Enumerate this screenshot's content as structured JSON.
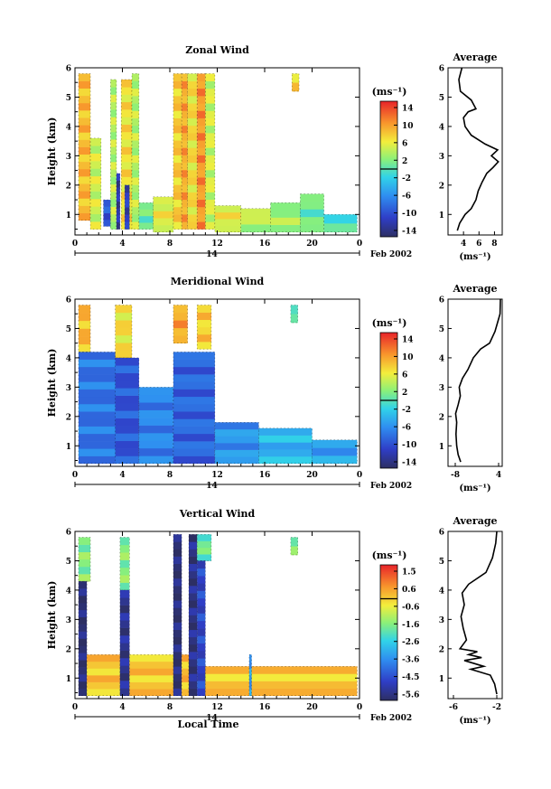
{
  "date_label": "Feb 2002",
  "chart_data": [
    {
      "type": "heatmap",
      "title": "Zonal Wind",
      "ylabel": "Height (km)",
      "xlabel": "",
      "x_ticks": [
        "0",
        "4",
        "8",
        "12",
        "16",
        "20",
        "0"
      ],
      "y_ticks": [
        "1",
        "2",
        "3",
        "4",
        "5",
        "6"
      ],
      "x_range": [
        0,
        24
      ],
      "ylim": [
        0.3,
        6
      ],
      "day_label": "14",
      "colorbar": {
        "unit": "(ms⁻¹)",
        "ticks": [
          "14",
          "10",
          "6",
          "2",
          "-2",
          "-6",
          "-10",
          "-14"
        ],
        "range": [
          -16,
          16
        ]
      },
      "columns": [
        {
          "t0": 0.3,
          "t1": 1.3,
          "h0": 0.8,
          "h1": 5.8,
          "v": 9
        },
        {
          "t0": 1.3,
          "t1": 2.2,
          "h0": 0.5,
          "h1": 3.6,
          "v": 5
        },
        {
          "t0": 2.4,
          "t1": 3.0,
          "h0": 0.6,
          "h1": 1.5,
          "v": -10
        },
        {
          "t0": 3.0,
          "t1": 3.5,
          "h0": 0.5,
          "h1": 5.6,
          "v": 4
        },
        {
          "t0": 3.5,
          "t1": 3.8,
          "h0": 0.5,
          "h1": 2.4,
          "v": -13
        },
        {
          "t0": 3.9,
          "t1": 4.8,
          "h0": 0.5,
          "h1": 5.6,
          "v": 7
        },
        {
          "t0": 4.2,
          "t1": 4.6,
          "h0": 0.5,
          "h1": 2.0,
          "v": -12
        },
        {
          "t0": 4.8,
          "t1": 5.4,
          "h0": 0.5,
          "h1": 5.8,
          "v": 4
        },
        {
          "t0": 5.4,
          "t1": 6.6,
          "h0": 0.5,
          "h1": 1.4,
          "v": 1
        },
        {
          "t0": 6.6,
          "t1": 8.3,
          "h0": 0.4,
          "h1": 1.6,
          "v": 6
        },
        {
          "t0": 8.3,
          "t1": 9.0,
          "h0": 0.5,
          "h1": 5.8,
          "v": 8
        },
        {
          "t0": 9.0,
          "t1": 9.5,
          "h0": 0.5,
          "h1": 5.8,
          "v": 10
        },
        {
          "t0": 9.5,
          "t1": 10.3,
          "h0": 0.5,
          "h1": 5.8,
          "v": 7
        },
        {
          "t0": 10.3,
          "t1": 11.0,
          "h0": 0.5,
          "h1": 5.8,
          "v": 11
        },
        {
          "t0": 11.0,
          "t1": 11.8,
          "h0": 0.5,
          "h1": 5.8,
          "v": 5
        },
        {
          "t0": 11.8,
          "t1": 14.0,
          "h0": 0.4,
          "h1": 1.3,
          "v": 6
        },
        {
          "t0": 14.0,
          "t1": 16.5,
          "h0": 0.4,
          "h1": 1.2,
          "v": 4
        },
        {
          "t0": 16.5,
          "t1": 19.0,
          "h0": 0.4,
          "h1": 1.4,
          "v": 3
        },
        {
          "t0": 19.0,
          "t1": 21.0,
          "h0": 0.4,
          "h1": 1.7,
          "v": 1
        },
        {
          "t0": 21.0,
          "t1": 23.8,
          "h0": 0.4,
          "h1": 1.0,
          "v": -1
        },
        {
          "t0": 18.3,
          "t1": 18.9,
          "h0": 5.2,
          "h1": 5.8,
          "v": 8
        }
      ],
      "profile": {
        "title": "Average",
        "xlabel": "(ms⁻¹)",
        "x_ticks": [
          "4",
          "6",
          "8"
        ],
        "xlim": [
          2,
          9
        ],
        "ylim": [
          0.3,
          6
        ],
        "points": [
          [
            3.2,
            0.45
          ],
          [
            3.5,
            0.7
          ],
          [
            4.2,
            1.0
          ],
          [
            5.0,
            1.2
          ],
          [
            5.6,
            1.5
          ],
          [
            5.9,
            1.8
          ],
          [
            6.4,
            2.1
          ],
          [
            7.0,
            2.4
          ],
          [
            7.8,
            2.6
          ],
          [
            8.5,
            2.8
          ],
          [
            7.6,
            3.0
          ],
          [
            8.4,
            3.2
          ],
          [
            6.8,
            3.4
          ],
          [
            5.0,
            3.7
          ],
          [
            4.2,
            4.0
          ],
          [
            4.0,
            4.3
          ],
          [
            4.6,
            4.5
          ],
          [
            5.6,
            4.6
          ],
          [
            5.0,
            4.9
          ],
          [
            3.6,
            5.2
          ],
          [
            3.4,
            5.6
          ],
          [
            3.8,
            6.0
          ]
        ]
      }
    },
    {
      "type": "heatmap",
      "title": "Meridional Wind",
      "ylabel": "Height (km)",
      "xlabel": "",
      "x_ticks": [
        "0",
        "4",
        "8",
        "12",
        "16",
        "20",
        "0"
      ],
      "y_ticks": [
        "1",
        "2",
        "3",
        "4",
        "5",
        "6"
      ],
      "x_range": [
        0,
        24
      ],
      "ylim": [
        0.3,
        6
      ],
      "day_label": "14",
      "colorbar": {
        "unit": "(ms⁻¹)",
        "ticks": [
          "14",
          "10",
          "6",
          "2",
          "-2",
          "-6",
          "-10",
          "-14"
        ],
        "range": [
          -16,
          16
        ]
      },
      "columns": [
        {
          "t0": 0.3,
          "t1": 1.3,
          "h0": 4.2,
          "h1": 5.8,
          "v": 9
        },
        {
          "t0": 0.3,
          "t1": 3.5,
          "h0": 0.4,
          "h1": 4.2,
          "v": -8
        },
        {
          "t0": 3.4,
          "t1": 4.8,
          "h0": 4.0,
          "h1": 5.8,
          "v": 7
        },
        {
          "t0": 3.4,
          "t1": 5.4,
          "h0": 0.4,
          "h1": 4.0,
          "v": -10
        },
        {
          "t0": 5.4,
          "t1": 8.3,
          "h0": 0.4,
          "h1": 3.0,
          "v": -7
        },
        {
          "t0": 8.3,
          "t1": 9.5,
          "h0": 4.5,
          "h1": 5.8,
          "v": 10
        },
        {
          "t0": 8.3,
          "t1": 11.8,
          "h0": 0.4,
          "h1": 4.2,
          "v": -9
        },
        {
          "t0": 10.3,
          "t1": 11.5,
          "h0": 4.3,
          "h1": 5.8,
          "v": 8
        },
        {
          "t0": 11.8,
          "t1": 15.5,
          "h0": 0.4,
          "h1": 1.8,
          "v": -6
        },
        {
          "t0": 15.5,
          "t1": 20.0,
          "h0": 0.4,
          "h1": 1.6,
          "v": -4
        },
        {
          "t0": 20.0,
          "t1": 23.8,
          "h0": 0.4,
          "h1": 1.2,
          "v": -5
        },
        {
          "t0": 18.2,
          "t1": 18.8,
          "h0": 5.2,
          "h1": 5.8,
          "v": 1
        }
      ],
      "profile": {
        "title": "Average",
        "xlabel": "(ms⁻¹)",
        "x_ticks": [
          "-8",
          "4"
        ],
        "xlim": [
          -10,
          5
        ],
        "ylim": [
          0.3,
          6
        ],
        "points": [
          [
            -6.5,
            0.45
          ],
          [
            -7.2,
            0.7
          ],
          [
            -7.6,
            1.0
          ],
          [
            -7.8,
            1.4
          ],
          [
            -7.6,
            1.8
          ],
          [
            -7.9,
            2.1
          ],
          [
            -7.2,
            2.4
          ],
          [
            -6.6,
            2.7
          ],
          [
            -6.9,
            3.0
          ],
          [
            -6.0,
            3.3
          ],
          [
            -4.5,
            3.6
          ],
          [
            -3.0,
            4.0
          ],
          [
            -1.0,
            4.3
          ],
          [
            1.5,
            4.5
          ],
          [
            3.0,
            4.9
          ],
          [
            3.7,
            5.2
          ],
          [
            4.4,
            5.5
          ],
          [
            4.5,
            6.0
          ]
        ]
      }
    },
    {
      "type": "heatmap",
      "title": "Vertical Wind",
      "ylabel": "Height (km)",
      "xlabel": "Local Time",
      "x_ticks": [
        "0",
        "4",
        "8",
        "12",
        "16",
        "20",
        "0"
      ],
      "y_ticks": [
        "1",
        "2",
        "3",
        "4",
        "5",
        "6"
      ],
      "x_range": [
        0,
        24
      ],
      "ylim": [
        0.3,
        6
      ],
      "day_label": "14",
      "colorbar": {
        "unit": "(ms⁻¹)",
        "ticks": [
          "1.5",
          "0.6",
          "-0.6",
          "-1.6",
          "-2.6",
          "-3.6",
          "-4.5",
          "-5.6"
        ],
        "range": [
          -6,
          2
        ]
      },
      "columns": [
        {
          "t0": 0.3,
          "t1": 1.3,
          "h0": 4.3,
          "h1": 5.8,
          "v": -1.5
        },
        {
          "t0": 0.3,
          "t1": 1.0,
          "h0": 0.4,
          "h1": 4.3,
          "v": -5.8
        },
        {
          "t0": 1.0,
          "t1": 3.8,
          "h0": 0.4,
          "h1": 1.8,
          "v": 0.1
        },
        {
          "t0": 3.8,
          "t1": 4.6,
          "h0": 4.0,
          "h1": 5.8,
          "v": -1.5
        },
        {
          "t0": 3.8,
          "t1": 4.6,
          "h0": 0.4,
          "h1": 4.0,
          "v": -5.5
        },
        {
          "t0": 4.6,
          "t1": 8.3,
          "h0": 0.4,
          "h1": 1.8,
          "v": 0.1
        },
        {
          "t0": 8.3,
          "t1": 9.0,
          "h0": 0.4,
          "h1": 5.9,
          "v": -5.8
        },
        {
          "t0": 9.0,
          "t1": 9.6,
          "h0": 0.4,
          "h1": 1.8,
          "v": 0.2
        },
        {
          "t0": 9.6,
          "t1": 10.3,
          "h0": 0.4,
          "h1": 5.9,
          "v": -5.6
        },
        {
          "t0": 10.3,
          "t1": 11.5,
          "h0": 5.0,
          "h1": 5.9,
          "v": -1.8
        },
        {
          "t0": 10.3,
          "t1": 11.0,
          "h0": 0.4,
          "h1": 5.0,
          "v": -4.8
        },
        {
          "t0": 11.0,
          "t1": 23.8,
          "h0": 0.4,
          "h1": 1.4,
          "v": 0.1
        },
        {
          "t0": 14.7,
          "t1": 14.9,
          "h0": 0.4,
          "h1": 1.8,
          "v": -3.4
        },
        {
          "t0": 18.2,
          "t1": 18.8,
          "h0": 5.2,
          "h1": 5.8,
          "v": -1.4
        }
      ],
      "profile": {
        "title": "Average",
        "xlabel": "(ms⁻¹)",
        "x_ticks": [
          "-6",
          "-2"
        ],
        "xlim": [
          -6.5,
          -1.5
        ],
        "ylim": [
          0.3,
          6
        ],
        "points": [
          [
            -2.0,
            0.45
          ],
          [
            -2.2,
            0.8
          ],
          [
            -2.6,
            1.1
          ],
          [
            -4.4,
            1.3
          ],
          [
            -3.2,
            1.4
          ],
          [
            -5.0,
            1.6
          ],
          [
            -3.4,
            1.7
          ],
          [
            -4.6,
            1.8
          ],
          [
            -3.8,
            1.9
          ],
          [
            -5.4,
            2.0
          ],
          [
            -4.8,
            2.3
          ],
          [
            -5.1,
            2.7
          ],
          [
            -5.3,
            3.1
          ],
          [
            -5.0,
            3.5
          ],
          [
            -5.2,
            3.9
          ],
          [
            -4.6,
            4.2
          ],
          [
            -3.0,
            4.6
          ],
          [
            -2.4,
            5.1
          ],
          [
            -2.1,
            5.6
          ],
          [
            -2.0,
            6.0
          ]
        ]
      }
    }
  ]
}
